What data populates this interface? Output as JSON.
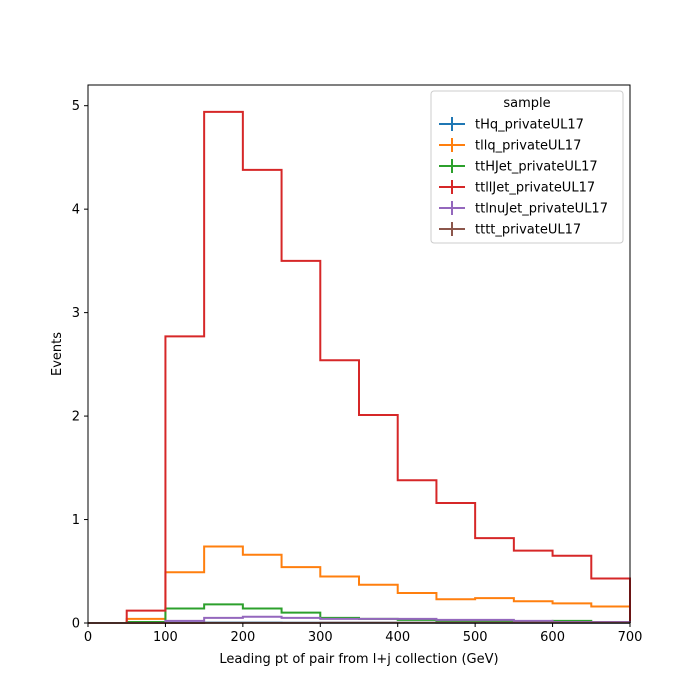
{
  "chart_data": {
    "type": "histogram",
    "xlabel": "Leading pt of pair from l+j collection (GeV)",
    "ylabel": "Events",
    "xlim": [
      0,
      700
    ],
    "ylim": [
      0,
      5.2
    ],
    "xticks": [
      0,
      100,
      200,
      300,
      400,
      500,
      600,
      700
    ],
    "yticks": [
      0,
      1,
      2,
      3,
      4,
      5
    ],
    "bin_edges": [
      0,
      50,
      100,
      150,
      200,
      250,
      300,
      350,
      400,
      450,
      500,
      550,
      600,
      650,
      700
    ],
    "legend": {
      "title": "sample",
      "placement": "top-right"
    },
    "series": [
      {
        "name": "tHq_privateUL17",
        "color": "#1f77b4",
        "values": [
          0,
          0,
          0.002,
          0.004,
          0.004,
          0.003,
          0.003,
          0.002,
          0.002,
          0.001,
          0.001,
          0.001,
          0.001,
          0.001
        ]
      },
      {
        "name": "tllq_privateUL17",
        "color": "#ff7f0e",
        "values": [
          0,
          0.04,
          0.49,
          0.74,
          0.66,
          0.54,
          0.45,
          0.37,
          0.29,
          0.23,
          0.24,
          0.21,
          0.19,
          0.16
        ]
      },
      {
        "name": "ttHJet_privateUL17",
        "color": "#2ca02c",
        "values": [
          0,
          0.01,
          0.14,
          0.18,
          0.14,
          0.1,
          0.05,
          0.04,
          0.03,
          0.02,
          0.02,
          0.01,
          0.02,
          0.01
        ]
      },
      {
        "name": "ttllJet_privateUL17",
        "color": "#d62728",
        "values": [
          0,
          0.12,
          2.77,
          4.94,
          4.38,
          3.5,
          2.54,
          2.01,
          1.38,
          1.16,
          0.82,
          0.7,
          0.65,
          0.43
        ]
      },
      {
        "name": "ttlnuJet_privateUL17",
        "color": "#9467bd",
        "values": [
          0,
          0,
          0.02,
          0.05,
          0.06,
          0.05,
          0.04,
          0.04,
          0.04,
          0.03,
          0.03,
          0.02,
          0.01,
          0.01
        ]
      },
      {
        "name": "tttt_privateUL17",
        "color": "#8c564b",
        "values": [
          0,
          0,
          0,
          0.001,
          0.001,
          0.001,
          0.002,
          0.002,
          0.002,
          0.002,
          0.002,
          0.002,
          0.002,
          0.002
        ]
      }
    ]
  }
}
